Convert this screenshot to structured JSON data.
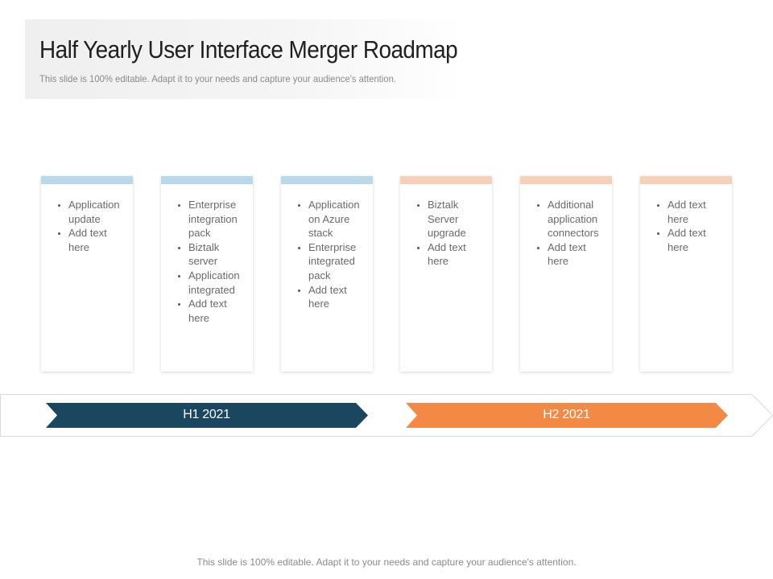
{
  "header": {
    "title": "Half Yearly User Interface Merger  Roadmap",
    "subtitle": "This slide is 100% editable. Adapt it to your needs and capture your audience's attention."
  },
  "colors": {
    "h1_accent": "#b9d9ea",
    "h2_accent": "#f8d0b8",
    "h1_arrow": "#1a4660",
    "h2_arrow": "#f28a45"
  },
  "cards": [
    {
      "items": [
        "Application update",
        "Add text here"
      ]
    },
    {
      "items": [
        "Enterprise integration pack",
        "Biztalk server",
        "Application integrated",
        "Add text here"
      ]
    },
    {
      "items": [
        "Application on Azure stack",
        "Enterprise integrated pack",
        "Add text here"
      ]
    },
    {
      "items": [
        "Biztalk Server upgrade",
        "Add text here"
      ]
    },
    {
      "items": [
        "Additional application connectors",
        "Add text here"
      ]
    },
    {
      "items": [
        "Add text here",
        "Add text here"
      ]
    }
  ],
  "timeline": {
    "h1_label": "H1 2021",
    "h2_label": "H2 2021"
  },
  "footer": {
    "text": "This slide is 100% editable. Adapt it to your needs and capture your audience's attention."
  }
}
